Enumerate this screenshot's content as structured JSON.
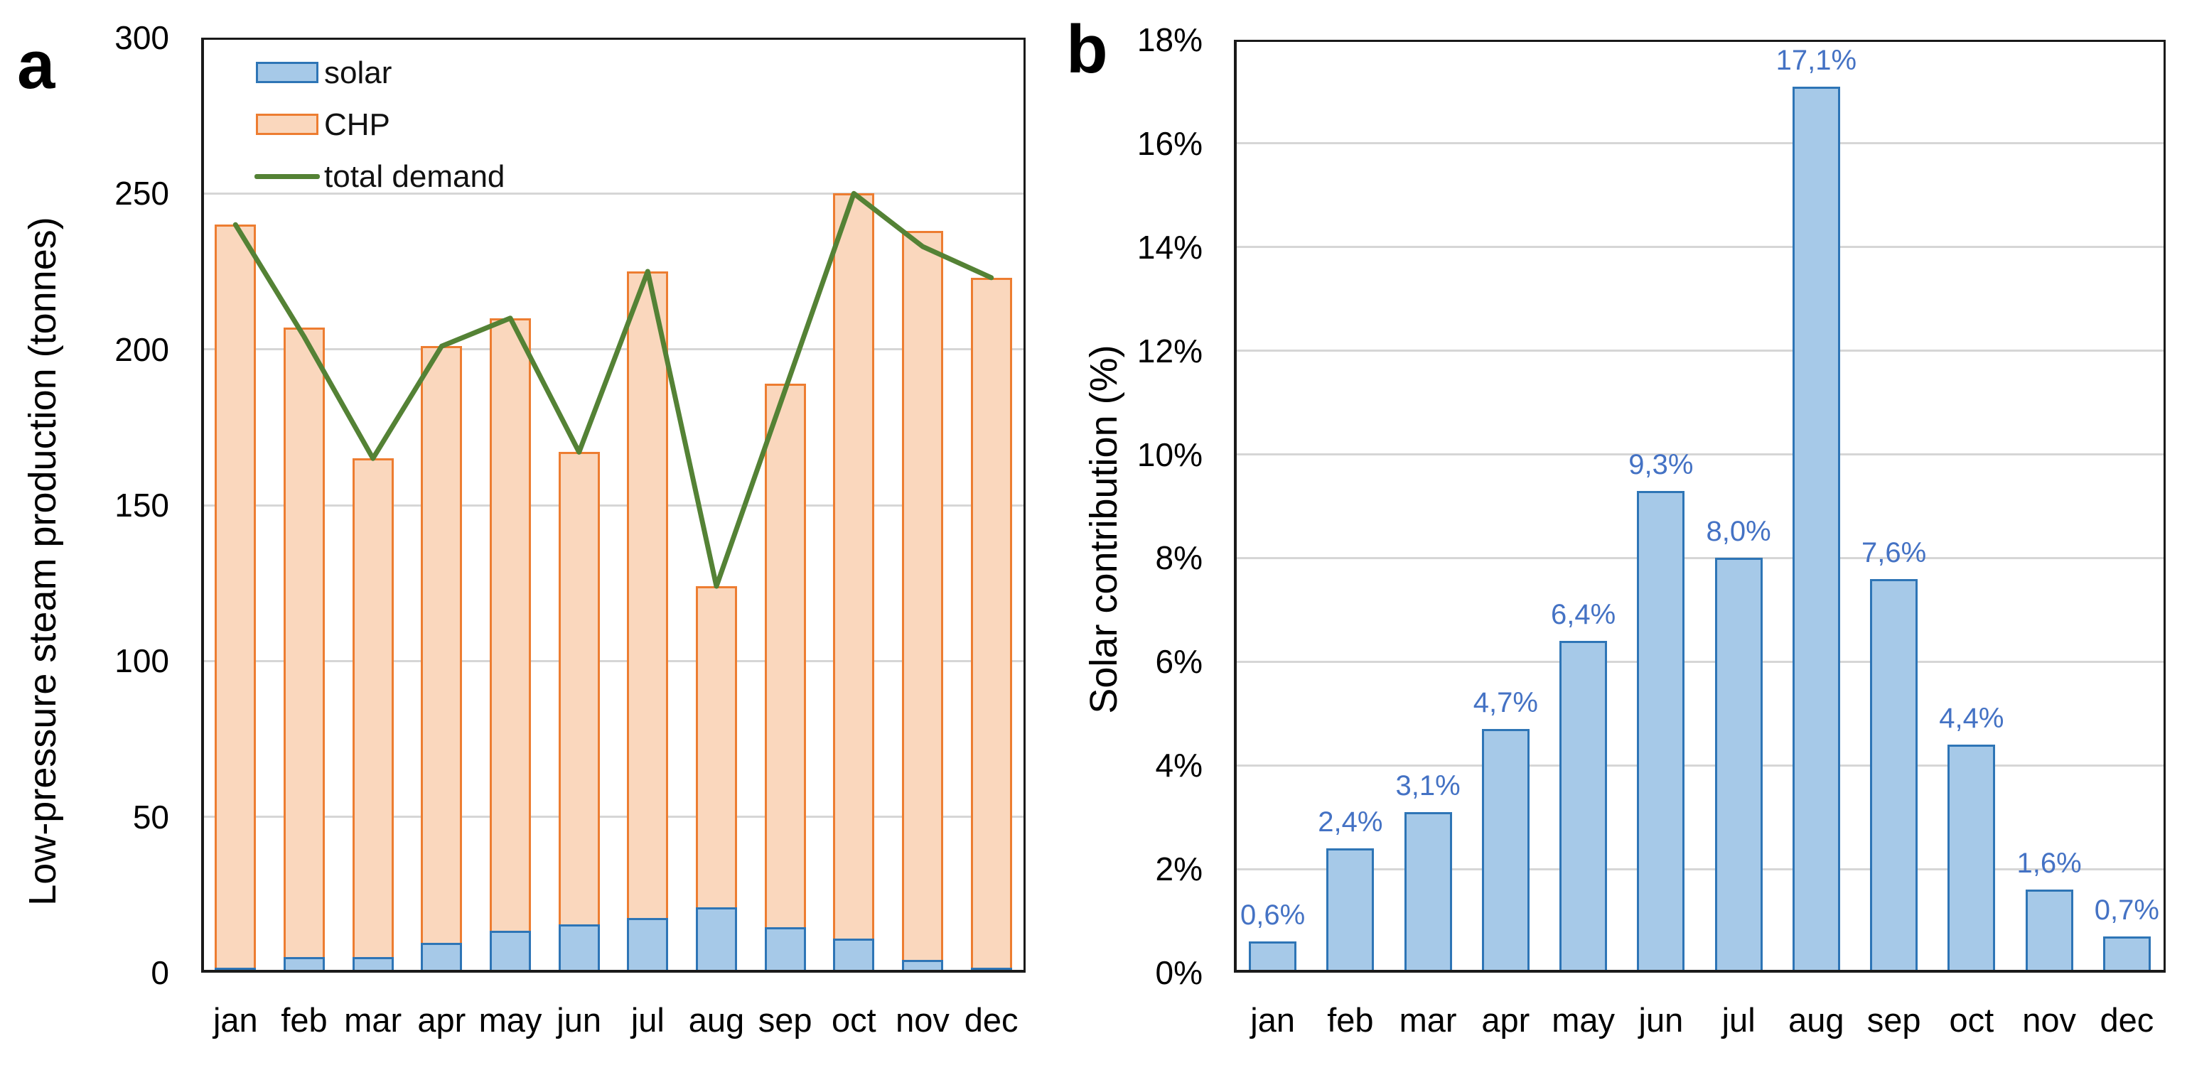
{
  "panel_a": {
    "letter": "a",
    "ylabel": "Low-pressure steam production  (tonnes)",
    "legend": {
      "solar": "solar",
      "chp": "CHP",
      "demand": "total demand"
    }
  },
  "panel_b": {
    "letter": "b",
    "ylabel": "Solar contribution (%)"
  },
  "colors": {
    "solar_fill": "#A6C9E8",
    "solar_border": "#2E75B6",
    "chp_fill": "#FAD7BD",
    "chp_border": "#ED7D31",
    "demand_line": "#548235",
    "data_label": "#4472C4",
    "grid": "#D6D6D6",
    "axis": "#1A1A1A"
  },
  "chart_data": [
    {
      "panel": "a",
      "type": "bar",
      "subtype": "stacked-bars-with-line",
      "categories": [
        "jan",
        "feb",
        "mar",
        "apr",
        "may",
        "jun",
        "jul",
        "aug",
        "sep",
        "oct",
        "nov",
        "dec"
      ],
      "series": [
        {
          "name": "solar",
          "type": "bar",
          "values": [
            1.5,
            5,
            5,
            9.5,
            13.5,
            15.5,
            17.5,
            21,
            14.5,
            11,
            4,
            1.5
          ]
        },
        {
          "name": "CHP",
          "type": "bar",
          "values": [
            238.5,
            202,
            160,
            191.5,
            196.5,
            151.5,
            207.5,
            103,
            174.5,
            239,
            234,
            221.5
          ]
        },
        {
          "name": "total demand",
          "type": "line",
          "values": [
            240,
            204,
            165,
            201,
            210,
            167,
            225,
            124,
            187,
            250,
            233,
            223
          ]
        }
      ],
      "stack_totals": [
        240,
        207,
        165,
        201,
        210,
        167,
        225,
        124,
        189,
        250,
        238,
        223
      ],
      "title": "",
      "xlabel": "",
      "ylabel": "Low-pressure steam production  (tonnes)",
      "ylim": [
        0,
        300
      ],
      "ytick_step": 50,
      "ytick_labels": [
        "0",
        "50",
        "100",
        "150",
        "200",
        "250",
        "300"
      ],
      "grid": true,
      "legend_position": "top-left-inside",
      "legend_entries": [
        "solar",
        "CHP",
        "total demand"
      ]
    },
    {
      "panel": "b",
      "type": "bar",
      "categories": [
        "jan",
        "feb",
        "mar",
        "apr",
        "may",
        "jun",
        "jul",
        "aug",
        "sep",
        "oct",
        "nov",
        "dec"
      ],
      "values": [
        0.6,
        2.4,
        3.1,
        4.7,
        6.4,
        9.3,
        8.0,
        17.1,
        7.6,
        4.4,
        1.6,
        0.7
      ],
      "data_labels": [
        "0,6%",
        "2,4%",
        "3,1%",
        "4,7%",
        "6,4%",
        "9,3%",
        "8,0%",
        "17,1%",
        "7,6%",
        "4,4%",
        "1,6%",
        "0,7%"
      ],
      "title": "",
      "xlabel": "",
      "ylabel": "Solar contribution (%)",
      "ylim": [
        0,
        18
      ],
      "ytick_step": 2,
      "ytick_labels": [
        "0%",
        "2%",
        "4%",
        "6%",
        "8%",
        "10%",
        "12%",
        "14%",
        "16%",
        "18%"
      ],
      "grid": true,
      "legend_position": "none"
    }
  ]
}
